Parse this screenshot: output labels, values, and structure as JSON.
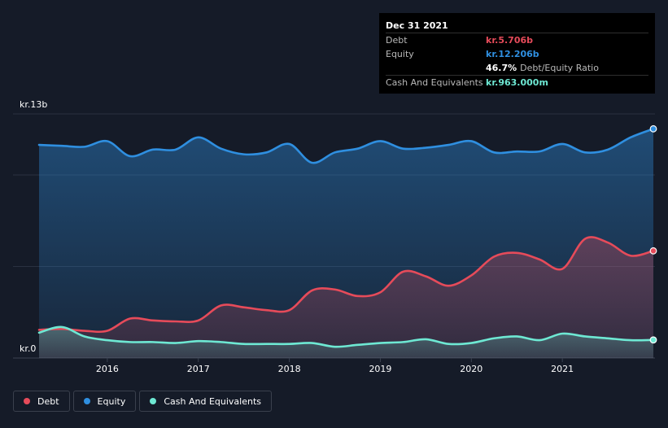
{
  "tooltip": {
    "date": "Dec 31 2021",
    "rows": [
      {
        "label": "Debt",
        "value": "kr.5.706b",
        "color": "#e64b5a"
      },
      {
        "label": "Equity",
        "value": "kr.12.206b",
        "color": "#2f8fe0"
      },
      {
        "label": "",
        "value": "46.7%",
        "suffix": "Debt/Equity Ratio",
        "color": "#ffffff"
      },
      {
        "label": "Cash And Equivalents",
        "value": "kr.963.000m",
        "color": "#6ee8d3"
      }
    ]
  },
  "legend": [
    {
      "label": "Debt",
      "color": "#e64b5a"
    },
    {
      "label": "Equity",
      "color": "#2f8fe0"
    },
    {
      "label": "Cash And Equivalents",
      "color": "#6ee8d3"
    }
  ],
  "chart_data": {
    "type": "area",
    "y_tick_labels": {
      "top": "kr.13b",
      "bottom": "kr.0"
    },
    "ylim": [
      0,
      13
    ],
    "xlim": [
      2015.25,
      2022.0
    ],
    "x_ticks": [
      2016,
      2017,
      2018,
      2019,
      2020,
      2021
    ],
    "x_tick_labels": [
      "2016",
      "2017",
      "2018",
      "2019",
      "2020",
      "2021"
    ],
    "grid": true,
    "series": [
      {
        "name": "Equity",
        "color": "#2f8fe0",
        "x": [
          2015.25,
          2015.5,
          2015.75,
          2016.0,
          2016.25,
          2016.5,
          2016.75,
          2017.0,
          2017.25,
          2017.5,
          2017.75,
          2018.0,
          2018.25,
          2018.5,
          2018.75,
          2019.0,
          2019.25,
          2019.5,
          2019.75,
          2020.0,
          2020.25,
          2020.5,
          2020.75,
          2021.0,
          2021.25,
          2021.5,
          2021.75,
          2022.0
        ],
        "values": [
          11.35,
          11.3,
          11.25,
          11.55,
          10.75,
          11.1,
          11.1,
          11.75,
          11.15,
          10.85,
          10.95,
          11.4,
          10.4,
          10.95,
          11.15,
          11.55,
          11.15,
          11.2,
          11.35,
          11.55,
          10.95,
          11.0,
          11.0,
          11.4,
          10.95,
          11.1,
          11.75,
          12.206
        ]
      },
      {
        "name": "Debt",
        "color": "#e64b5a",
        "x": [
          2015.25,
          2015.5,
          2015.75,
          2016.0,
          2016.25,
          2016.5,
          2016.75,
          2017.0,
          2017.25,
          2017.5,
          2017.75,
          2018.0,
          2018.25,
          2018.5,
          2018.75,
          2019.0,
          2019.25,
          2019.5,
          2019.75,
          2020.0,
          2020.25,
          2020.5,
          2020.75,
          2021.0,
          2021.25,
          2021.5,
          2021.75,
          2022.0
        ],
        "values": [
          1.5,
          1.55,
          1.45,
          1.45,
          2.1,
          2.0,
          1.95,
          2.0,
          2.8,
          2.7,
          2.55,
          2.55,
          3.6,
          3.65,
          3.3,
          3.5,
          4.6,
          4.35,
          3.85,
          4.4,
          5.4,
          5.6,
          5.25,
          4.75,
          6.35,
          6.15,
          5.45,
          5.706
        ]
      },
      {
        "name": "Cash And Equivalents",
        "color": "#6ee8d3",
        "x": [
          2015.25,
          2015.5,
          2015.75,
          2016.0,
          2016.25,
          2016.5,
          2016.75,
          2017.0,
          2017.25,
          2017.5,
          2017.75,
          2018.0,
          2018.25,
          2018.5,
          2018.75,
          2019.0,
          2019.25,
          2019.5,
          2019.75,
          2020.0,
          2020.25,
          2020.5,
          2020.75,
          2021.0,
          2021.25,
          2021.5,
          2021.75,
          2022.0
        ],
        "values": [
          1.35,
          1.65,
          1.15,
          0.95,
          0.85,
          0.85,
          0.8,
          0.9,
          0.85,
          0.75,
          0.75,
          0.75,
          0.8,
          0.6,
          0.7,
          0.8,
          0.85,
          1.0,
          0.75,
          0.8,
          1.05,
          1.15,
          0.95,
          1.3,
          1.15,
          1.05,
          0.95,
          0.963
        ]
      }
    ]
  }
}
